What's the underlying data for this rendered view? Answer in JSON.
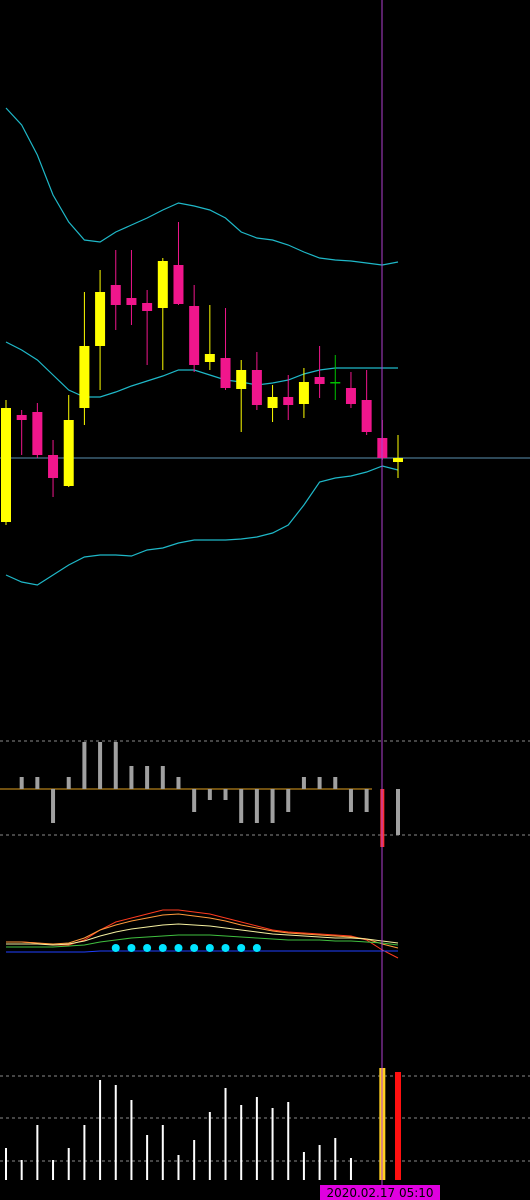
{
  "chart_data": [
    {
      "type": "candlestick",
      "ylim": [
        0,
        600
      ],
      "open": [
        78,
        185,
        188,
        145,
        114,
        192,
        254,
        315,
        302,
        297,
        292,
        335,
        294,
        238,
        242,
        211,
        230,
        192,
        203,
        196,
        223,
        218,
        212,
        200,
        162,
        138
      ],
      "high": [
        200,
        190,
        197,
        160,
        205,
        308,
        330,
        350,
        350,
        310,
        342,
        378,
        315,
        295,
        292,
        240,
        248,
        215,
        225,
        232,
        254,
        245,
        228,
        230,
        180,
        165
      ],
      "low": [
        75,
        145,
        142,
        103,
        113,
        175,
        210,
        270,
        275,
        235,
        230,
        295,
        228,
        230,
        210,
        168,
        190,
        178,
        180,
        182,
        202,
        200,
        192,
        165,
        140,
        122
      ],
      "close": [
        192,
        180,
        145,
        122,
        180,
        254,
        308,
        295,
        295,
        289,
        339,
        296,
        235,
        246,
        212,
        230,
        195,
        203,
        195,
        218,
        216,
        218,
        196,
        168,
        142,
        142
      ],
      "up_color": "#ffff00",
      "down_color": "#f0168c",
      "flat_color": "#00c000",
      "series": [
        {
          "color": "#1fb8c8",
          "values": [
            492,
            475,
            445,
            405,
            378,
            360,
            358,
            368,
            375,
            382,
            390,
            397,
            394,
            390,
            382,
            368,
            362,
            360,
            355,
            348,
            342,
            340,
            339,
            337,
            335,
            338
          ]
        },
        {
          "color": "#1fb8c8",
          "values": [
            258,
            250,
            240,
            225,
            210,
            203,
            203,
            208,
            214,
            219,
            224,
            230,
            230,
            225,
            220,
            218,
            215,
            217,
            220,
            226,
            230,
            232,
            232,
            232,
            232,
            232
          ]
        },
        {
          "color": "#1fb8c8",
          "values": [
            25,
            18,
            15,
            25,
            35,
            43,
            45,
            45,
            44,
            50,
            52,
            57,
            60,
            60,
            60,
            61,
            63,
            67,
            75,
            95,
            118,
            122,
            124,
            128,
            134,
            130
          ]
        }
      ]
    },
    {
      "type": "bar",
      "ylim": [
        -61,
        59
      ],
      "levels": [
        48,
        -46
      ],
      "color": "#a0a0a0",
      "zero_color": "#e0a020",
      "values": [
        0,
        12,
        12,
        -34,
        12,
        47,
        47,
        47,
        23,
        23,
        23,
        12,
        -23,
        -11,
        -11,
        -34,
        -34,
        -34,
        -23,
        12,
        12,
        12,
        -23,
        -23,
        -58,
        -46
      ],
      "bar_colors": [
        "#a0a0a0",
        "#a0a0a0",
        "#a0a0a0",
        "#a0a0a0",
        "#a0a0a0",
        "#a0a0a0",
        "#a0a0a0",
        "#a0a0a0",
        "#a0a0a0",
        "#a0a0a0",
        "#a0a0a0",
        "#a0a0a0",
        "#a0a0a0",
        "#a0a0a0",
        "#a0a0a0",
        "#a0a0a0",
        "#a0a0a0",
        "#a0a0a0",
        "#a0a0a0",
        "#a0a0a0",
        "#a0a0a0",
        "#a0a0a0",
        "#a0a0a0",
        "#a0a0a0",
        "#ff3030",
        "#a0a0a0"
      ]
    },
    {
      "type": "line",
      "ylim": [
        -60,
        140
      ],
      "series": [
        {
          "color": "#ff3b1f",
          "values": [
            58,
            58,
            57,
            55,
            55,
            60,
            70,
            78,
            82,
            86,
            90,
            90,
            88,
            86,
            82,
            78,
            74,
            70,
            68,
            67,
            66,
            65,
            64,
            60,
            50,
            42
          ]
        },
        {
          "color": "#ff9a3c",
          "values": [
            58,
            58,
            57,
            56,
            57,
            62,
            70,
            75,
            79,
            82,
            85,
            86,
            84,
            82,
            79,
            75,
            72,
            69,
            67,
            66,
            65,
            64,
            63,
            61,
            56,
            52
          ]
        },
        {
          "color": "#f5f0a0",
          "values": [
            56,
            56,
            56,
            55,
            56,
            59,
            64,
            68,
            71,
            73,
            75,
            76,
            75,
            74,
            72,
            70,
            68,
            66,
            65,
            64,
            63,
            62,
            62,
            61,
            59,
            57
          ]
        },
        {
          "color": "#40c040",
          "values": [
            53,
            53,
            53,
            53,
            54,
            55,
            58,
            60,
            62,
            63,
            64,
            65,
            65,
            65,
            64,
            63,
            62,
            61,
            60,
            60,
            60,
            59,
            59,
            58,
            57,
            55
          ]
        },
        {
          "color": "#2040ff",
          "values": [
            48,
            48,
            48,
            48,
            48,
            48,
            49,
            49,
            49,
            49,
            49,
            49,
            49,
            49,
            49,
            49,
            49,
            49,
            49,
            49,
            49,
            49,
            49,
            49,
            49,
            49
          ]
        }
      ],
      "dots": {
        "color": "#00e5ff",
        "values": [
          null,
          null,
          null,
          null,
          null,
          null,
          null,
          52,
          52,
          52,
          52,
          52,
          52,
          52,
          52,
          52,
          52,
          null,
          null,
          null,
          null,
          null,
          null,
          null,
          null,
          null
        ]
      }
    },
    {
      "type": "volume",
      "ylim": [
        0,
        120
      ],
      "levels": [
        104,
        62,
        19
      ],
      "color": "#ffffff",
      "values": [
        32,
        20,
        55,
        20,
        32,
        55,
        100,
        95,
        80,
        45,
        55,
        25,
        40,
        68,
        92,
        75,
        83,
        72,
        78,
        28,
        35,
        42,
        22,
        null,
        112,
        108
      ],
      "bar_colors": [
        "#ffffff",
        "#ffffff",
        "#ffffff",
        "#ffffff",
        "#ffffff",
        "#ffffff",
        "#ffffff",
        "#ffffff",
        "#ffffff",
        "#ffffff",
        "#ffffff",
        "#ffffff",
        "#ffffff",
        "#ffffff",
        "#ffffff",
        "#ffffff",
        "#ffffff",
        "#ffffff",
        "#ffffff",
        "#ffffff",
        "#ffffff",
        "#ffffff",
        "#ffffff",
        "#ffffff",
        "#ffd020",
        "#ff1010"
      ],
      "cursor_label": "2020.02.17 05:10"
    }
  ]
}
